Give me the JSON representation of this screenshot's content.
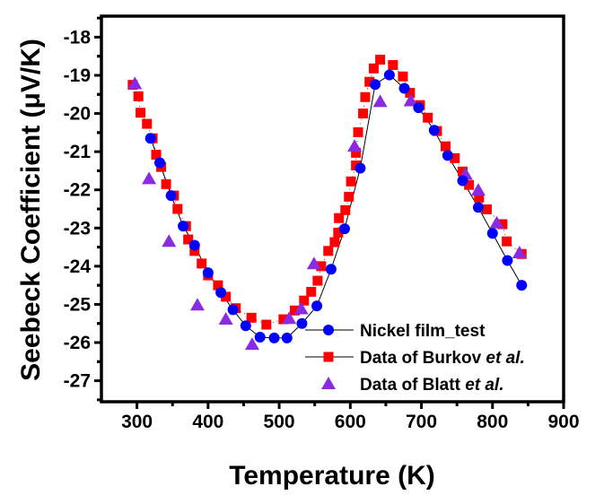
{
  "chart_data": {
    "type": "scatter",
    "title": "",
    "xlabel": "Temperature (K)",
    "ylabel": "Seebeck Coefficient (μV/K)",
    "xlim": [
      250,
      900
    ],
    "ylim": [
      -27.55,
      -17.45
    ],
    "xticks": [
      300,
      400,
      500,
      600,
      700,
      800,
      900
    ],
    "xtick_labels": [
      "300",
      "400",
      "500",
      "600",
      "700",
      "800",
      "900"
    ],
    "yticks": [
      -18,
      -19,
      -20,
      -21,
      -22,
      -23,
      -24,
      -25,
      -26,
      -27
    ],
    "ytick_labels": [
      "-18",
      "-19",
      "-20",
      "-21",
      "-22",
      "-23",
      "-24",
      "-25",
      "-26",
      "-27"
    ],
    "grid": false,
    "legend_position": "bottom-right",
    "series": [
      {
        "name": "Nickel film_test",
        "name_suffix": "",
        "marker": "circle",
        "color": "#0000ff",
        "line": "solid",
        "x": [
          319,
          332,
          348,
          365,
          381,
          400,
          418,
          435,
          453,
          473,
          493,
          511,
          532,
          553,
          573,
          592,
          614,
          635,
          655,
          676,
          696,
          718,
          737,
          758,
          780,
          800,
          821,
          841
        ],
        "y": [
          -20.65,
          -21.29,
          -22.15,
          -22.95,
          -23.45,
          -24.17,
          -24.69,
          -25.14,
          -25.56,
          -25.86,
          -25.88,
          -25.88,
          -25.5,
          -25.04,
          -24.08,
          -23.02,
          -21.43,
          -19.24,
          -18.99,
          -19.34,
          -19.85,
          -20.44,
          -21.1,
          -21.76,
          -22.46,
          -23.14,
          -23.85,
          -24.5
        ]
      },
      {
        "name": "Data of Burkov ",
        "name_suffix": "et al.",
        "marker": "square",
        "color": "#ff0000",
        "line": "dotted",
        "x": [
          294,
          302,
          305,
          314,
          322,
          327,
          334,
          341,
          352,
          357,
          369,
          372,
          381,
          391,
          400,
          414,
          425,
          439,
          461,
          482,
          506,
          522,
          535,
          545,
          554,
          559,
          569,
          578,
          583,
          584,
          593,
          598,
          601,
          608,
          608,
          611,
          618,
          621,
          627,
          633,
          642,
          660,
          674,
          684,
          698,
          709,
          722,
          734,
          747,
          758,
          767,
          781,
          792,
          814,
          820,
          841
        ],
        "y": [
          -19.25,
          -19.55,
          -19.98,
          -20.27,
          -20.65,
          -21.08,
          -21.4,
          -21.85,
          -22.15,
          -22.5,
          -22.95,
          -23.3,
          -23.6,
          -23.93,
          -24.24,
          -24.5,
          -24.8,
          -25.1,
          -25.35,
          -25.53,
          -25.39,
          -25.16,
          -24.9,
          -24.67,
          -24.38,
          -24.0,
          -23.6,
          -23.37,
          -23.12,
          -22.74,
          -22.53,
          -22.18,
          -21.78,
          -21.36,
          -21.03,
          -20.49,
          -20.0,
          -19.57,
          -19.17,
          -18.82,
          -18.59,
          -18.73,
          -19.03,
          -19.46,
          -19.78,
          -20.11,
          -20.46,
          -20.86,
          -21.17,
          -21.52,
          -21.87,
          -22.2,
          -22.51,
          -22.9,
          -23.35,
          -23.68
        ]
      },
      {
        "name": "Data of Blatt ",
        "name_suffix": "et al.",
        "marker": "triangle",
        "color": "#8a2be2",
        "line": "none",
        "x": [
          297,
          317,
          345,
          385,
          425,
          462,
          514,
          531,
          549,
          606,
          642,
          685,
          762,
          780,
          806,
          838
        ],
        "y": [
          -19.22,
          -21.71,
          -23.35,
          -25.02,
          -25.39,
          -26.05,
          -25.37,
          -25.12,
          -23.94,
          -20.86,
          -19.69,
          -19.67,
          -21.59,
          -22.01,
          -22.87,
          -23.65
        ]
      }
    ]
  }
}
